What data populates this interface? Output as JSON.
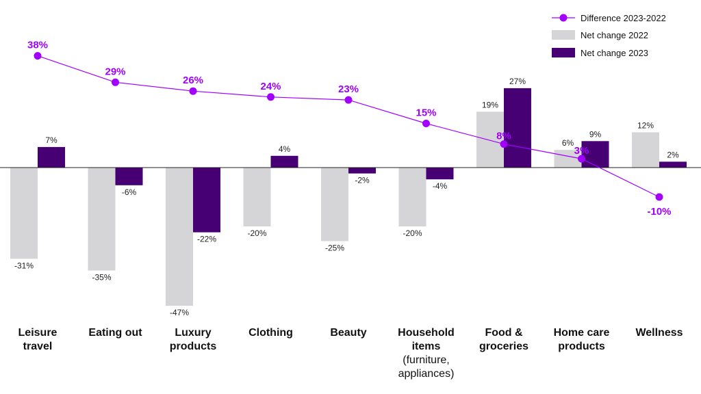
{
  "chart_data": {
    "type": "bar",
    "categories": [
      [
        "Leisure",
        "travel"
      ],
      [
        "Eating out"
      ],
      [
        "Luxury",
        "products"
      ],
      [
        "Clothing"
      ],
      [
        "Beauty"
      ],
      [
        "Household",
        "items",
        "(furniture,",
        "appliances)"
      ],
      [
        "Food &",
        "groceries"
      ],
      [
        "Home care",
        "products"
      ],
      [
        "Wellness"
      ]
    ],
    "series": [
      {
        "name": "Net change 2022",
        "type": "bar",
        "color": "#d5d5d8",
        "values": [
          -31,
          -35,
          -47,
          -20,
          -25,
          -20,
          19,
          6,
          12
        ],
        "labels": [
          "-31%",
          "-35%",
          "-47%",
          "-20%",
          "-25%",
          "-20%",
          "19%",
          "6%",
          "12%"
        ]
      },
      {
        "name": "Net change 2023",
        "type": "bar",
        "color": "#460073",
        "values": [
          7,
          -6,
          -22,
          4,
          -2,
          -4,
          27,
          9,
          2
        ],
        "labels": [
          "7%",
          "-6%",
          "-22%",
          "4%",
          "-2%",
          "-4%",
          "27%",
          "9%",
          "2%"
        ]
      },
      {
        "name": "Difference 2023-2022",
        "type": "line",
        "color": "#a100ff",
        "values": [
          38,
          29,
          26,
          24,
          23,
          15,
          8,
          3,
          -10
        ],
        "labels": [
          "38%",
          "29%",
          "26%",
          "24%",
          "23%",
          "15%",
          "8%",
          "3%",
          "-10%"
        ]
      }
    ],
    "legend_position": "top-right",
    "grid": false
  }
}
